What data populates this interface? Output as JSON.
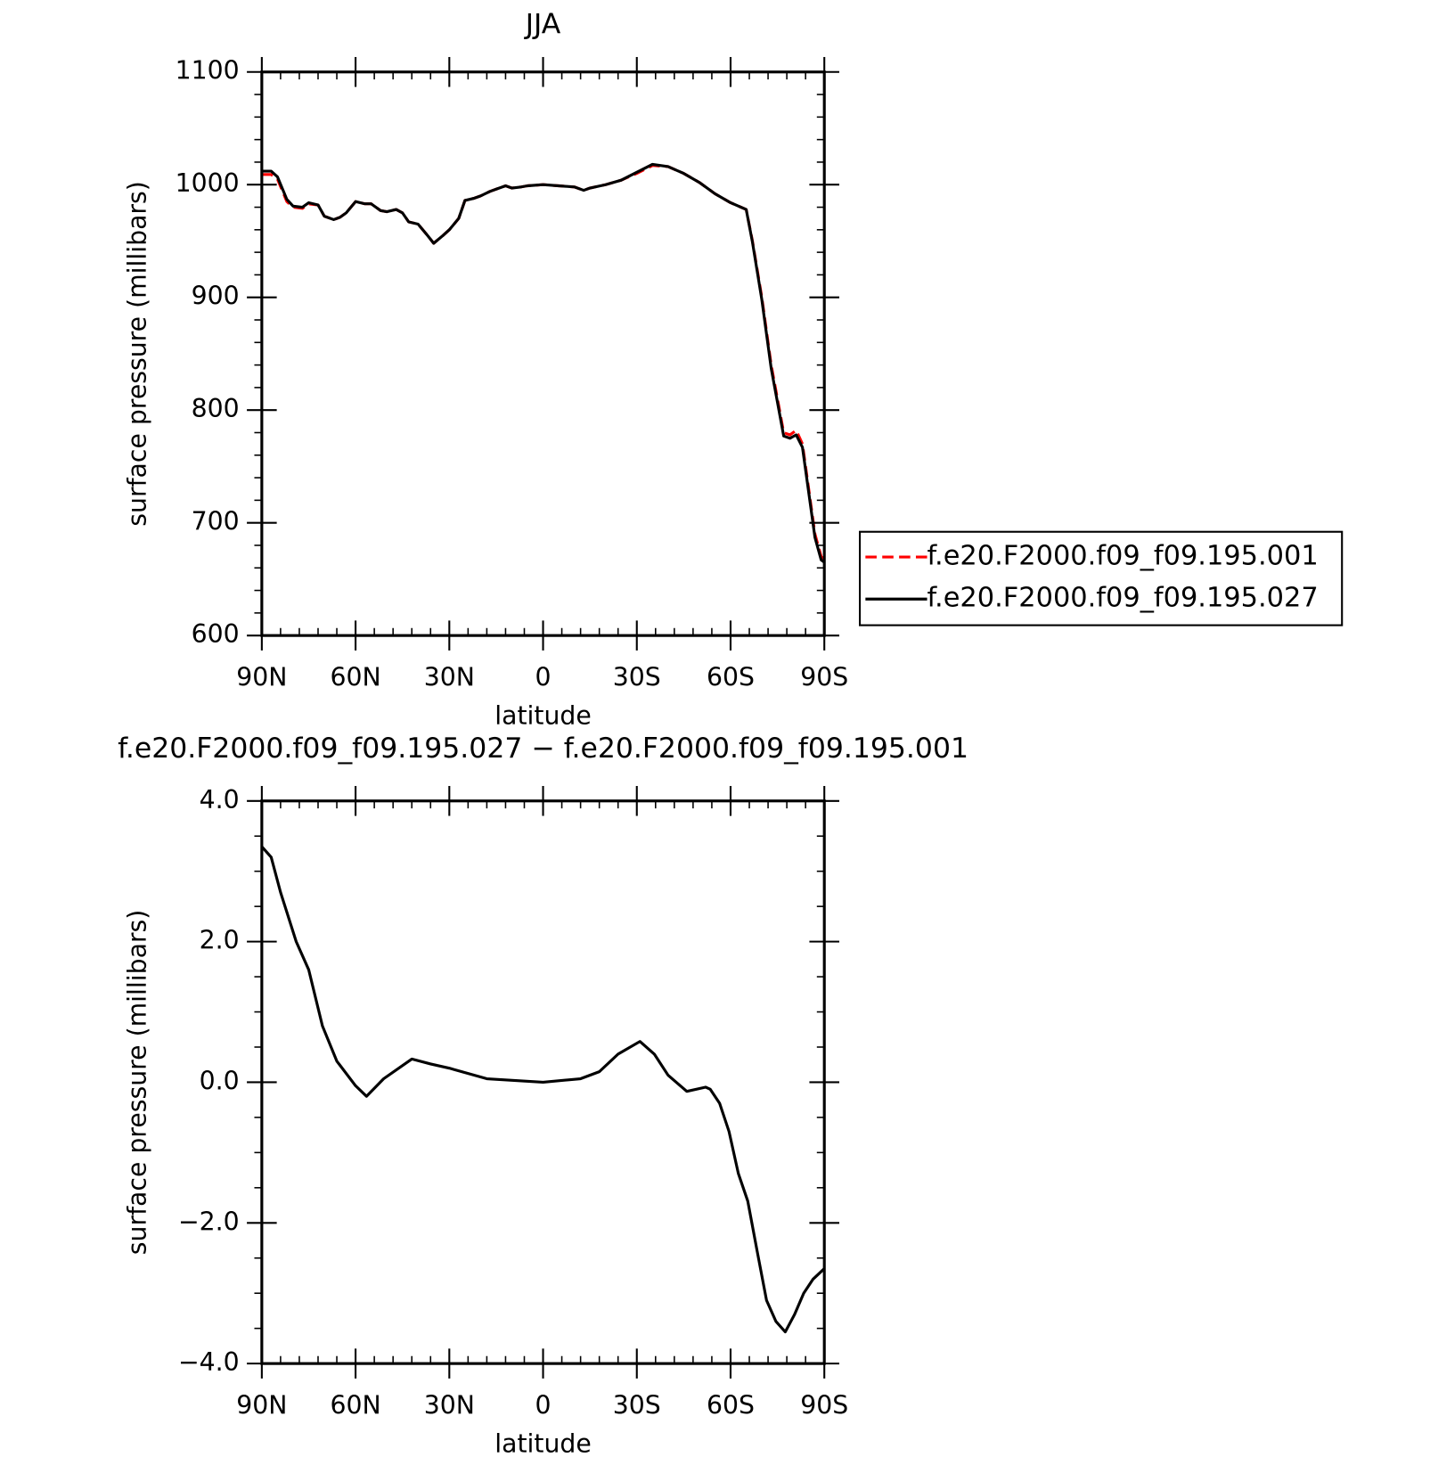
{
  "chart_data": [
    {
      "type": "line",
      "title": "JJA",
      "xlabel": "latitude",
      "ylabel": "surface pressure (millibars)",
      "x": [
        90,
        87,
        85,
        82,
        80,
        77,
        75,
        72,
        70,
        67,
        65,
        63,
        60,
        57,
        55,
        52,
        50,
        47,
        45,
        43,
        40,
        37,
        35,
        32,
        30,
        27,
        25,
        22,
        20,
        17,
        15,
        12,
        10,
        7,
        5,
        0,
        -5,
        -10,
        -13,
        -15,
        -20,
        -25,
        -30,
        -35,
        -40,
        -45,
        -50,
        -55,
        -60,
        -65,
        -67,
        -70,
        -73,
        -75,
        -77,
        -79,
        -81,
        -83,
        -85,
        -87,
        -89,
        -90
      ],
      "series": [
        {
          "name": "f.e20.F2000.f09_f09.195.001",
          "color": "#ff0000",
          "dash": true,
          "values": [
            1009,
            1009,
            1005,
            985,
            980,
            979,
            983,
            982,
            972,
            969,
            971,
            975,
            985,
            983,
            983,
            977,
            976,
            978,
            975,
            967,
            965,
            955,
            948,
            955,
            960,
            970,
            986,
            988,
            990,
            994,
            996,
            999,
            997,
            998,
            999,
            1000,
            999,
            998,
            995,
            997,
            1000,
            1004,
            1010,
            1017,
            1016,
            1010,
            1002,
            992,
            984,
            978,
            950,
            900,
            840,
            810,
            780,
            778,
            782,
            770,
            730,
            690,
            670,
            668
          ]
        },
        {
          "name": "f.e20.F2000.f09_f09.195.027",
          "color": "#000000",
          "dash": false,
          "values": [
            1012,
            1012,
            1007,
            987,
            981,
            980,
            984,
            982,
            972,
            969,
            971,
            975,
            985,
            983,
            983,
            977,
            976,
            978,
            975,
            967,
            965,
            955,
            948,
            955,
            960,
            970,
            986,
            988,
            990,
            994,
            996,
            999,
            997,
            998,
            999,
            1000,
            999,
            998,
            995,
            997,
            1000,
            1004,
            1011,
            1018,
            1016,
            1010,
            1002,
            992,
            984,
            978,
            949,
            898,
            837,
            807,
            777,
            775,
            778,
            767,
            727,
            687,
            667,
            665
          ]
        }
      ],
      "xlim": [
        90,
        -90
      ],
      "xticks": [
        {
          "value": 90,
          "label": "90N"
        },
        {
          "value": 60,
          "label": "60N"
        },
        {
          "value": 30,
          "label": "30N"
        },
        0,
        {
          "value": -30,
          "label": "30S"
        },
        {
          "value": -60,
          "label": "60S"
        },
        {
          "value": -90,
          "label": "90S"
        }
      ],
      "xminorticks": [
        84,
        78,
        72,
        66,
        54,
        48,
        42,
        36,
        24,
        18,
        12,
        6,
        -6,
        -12,
        -18,
        -24,
        -36,
        -42,
        -48,
        -54,
        -66,
        -72,
        -78,
        -84
      ],
      "ylim": [
        600,
        1100
      ],
      "yticks": [
        600,
        700,
        800,
        900,
        1000,
        1100
      ],
      "yminorticks": [
        620,
        640,
        660,
        680,
        720,
        740,
        760,
        780,
        820,
        840,
        860,
        880,
        920,
        940,
        960,
        980,
        1020,
        1040,
        1060,
        1080
      ],
      "legend": "right"
    },
    {
      "type": "line",
      "title": "f.e20.F2000.f09_f09.195.027 − f.e20.F2000.f09_f09.195.001",
      "xlabel": "latitude",
      "ylabel": "surface pressure (millibars)",
      "x": [
        90,
        87,
        84,
        79,
        75,
        70.6,
        66,
        60,
        56.5,
        51,
        42,
        36,
        30,
        18,
        0,
        -12,
        -18,
        -24,
        -31,
        -35.6,
        -40,
        -46,
        -52,
        -53.5,
        -56.5,
        -59.5,
        -62.5,
        -65.5,
        -68.5,
        -71.5,
        -74.5,
        -77.5,
        -80.5,
        -83.4,
        -86.4,
        -90
      ],
      "series": [
        {
          "color": "#000000",
          "dash": false,
          "values": [
            3.35,
            3.2,
            2.7,
            2.0,
            1.6,
            0.8,
            0.3,
            -0.05,
            -0.2,
            0.05,
            0.33,
            0.26,
            0.2,
            0.05,
            0.0,
            0.05,
            0.15,
            0.4,
            0.58,
            0.4,
            0.1,
            -0.13,
            -0.07,
            -0.1,
            -0.3,
            -0.7,
            -1.3,
            -1.69,
            -2.4,
            -3.1,
            -3.4,
            -3.55,
            -3.3,
            -3.0,
            -2.8,
            -2.65
          ]
        }
      ],
      "xlim": [
        90,
        -90
      ],
      "xticks": [
        {
          "value": 90,
          "label": "90N"
        },
        {
          "value": 60,
          "label": "60N"
        },
        {
          "value": 30,
          "label": "30N"
        },
        0,
        {
          "value": -30,
          "label": "30S"
        },
        {
          "value": -60,
          "label": "60S"
        },
        {
          "value": -90,
          "label": "90S"
        }
      ],
      "xminorticks": [
        84,
        78,
        72,
        66,
        54,
        48,
        42,
        36,
        24,
        18,
        12,
        6,
        -6,
        -12,
        -18,
        -24,
        -36,
        -42,
        -48,
        -54,
        -66,
        -72,
        -78,
        -84
      ],
      "ylim": [
        -4,
        4
      ],
      "yticks": [
        {
          "value": -4,
          "label": "−4.0"
        },
        {
          "value": -2,
          "label": "−2.0"
        },
        {
          "value": 0,
          "label": "0.0"
        },
        {
          "value": 2,
          "label": "2.0"
        },
        {
          "value": 4,
          "label": "4.0"
        }
      ],
      "yminorticks": [
        -3.5,
        -3,
        -2.5,
        -1.5,
        -1,
        -0.5,
        0.5,
        1,
        1.5,
        2.5,
        3,
        3.5
      ]
    }
  ]
}
